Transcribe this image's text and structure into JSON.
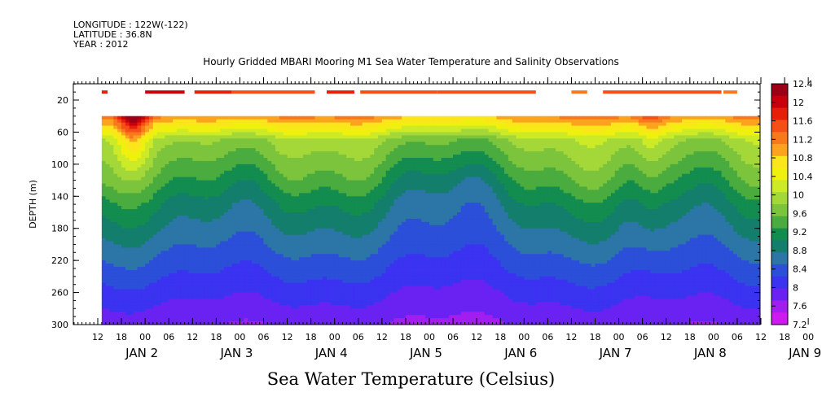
{
  "header": {
    "longitude": "LONGITUDE : 122W(-122)",
    "latitude": "LATITUDE : 36.8N",
    "year": "YEAR : 2012"
  },
  "chart_data": {
    "type": "heatmap",
    "title": "Hourly Gridded MBARI Mooring M1 Sea Water Temperature and Salinity Observations",
    "xlabel": "Sea Water Temperature (Celsius)",
    "ylabel": "DEPTH (m)",
    "y_ticks": [
      20,
      60,
      100,
      140,
      180,
      220,
      260,
      300
    ],
    "ylim": [
      300,
      0
    ],
    "x_hour_labels": [
      "12",
      "18",
      "00",
      "06",
      "12",
      "18",
      "00",
      "06",
      "12",
      "18",
      "00",
      "06",
      "12",
      "18",
      "00",
      "06",
      "12",
      "18",
      "00",
      "06",
      "12",
      "18",
      "00",
      "06",
      "12",
      "18",
      "00",
      "06",
      "12",
      "18",
      "00"
    ],
    "x_day_labels": [
      "JAN 2",
      "JAN 3",
      "JAN 4",
      "JAN 5",
      "JAN 6",
      "JAN 7",
      "JAN 8",
      "JAN 9"
    ],
    "colorbar_levels": [
      "12.4",
      "12",
      "11.6",
      "11.2",
      "10.8",
      "10.4",
      "10",
      "9.6",
      "9.2",
      "8.8",
      "8.4",
      "8",
      "7.6",
      "7.2"
    ],
    "colorbar_colors": [
      "#9b0016",
      "#c8000d",
      "#e61e0a",
      "#f54e16",
      "#f8791b",
      "#fba31e",
      "#fbe51b",
      "#f0f00e",
      "#ccea26",
      "#a3d838",
      "#7cc43c",
      "#4aac3f",
      "#138c4f",
      "#137e6c",
      "#2b76a6",
      "#2b4fd8",
      "#3a33f0",
      "#6a22f2",
      "#a21ef0",
      "#cc1af1"
    ],
    "data_xlim_hours": [
      6,
      174
    ],
    "surface_depth_m": 10,
    "profile_top_depth_m": 40,
    "surface_obs": [
      {
        "start_hr": 13,
        "end_hr": 14.5,
        "temp": 11.8
      },
      {
        "start_hr": 24,
        "end_hr": 34,
        "temp": 12.2
      },
      {
        "start_hr": 36.5,
        "end_hr": 46,
        "temp": 11.8
      },
      {
        "start_hr": 46,
        "end_hr": 67,
        "temp": 11.7
      },
      {
        "start_hr": 70,
        "end_hr": 77,
        "temp": 12.0
      },
      {
        "start_hr": 78.5,
        "end_hr": 98,
        "temp": 11.7
      },
      {
        "start_hr": 98,
        "end_hr": 123,
        "temp": 11.6
      },
      {
        "start_hr": 132,
        "end_hr": 136,
        "temp": 11.3
      },
      {
        "start_hr": 140,
        "end_hr": 170,
        "temp": 11.5
      },
      {
        "start_hr": 170.5,
        "end_hr": 174,
        "temp": 11.3
      }
    ]
  }
}
